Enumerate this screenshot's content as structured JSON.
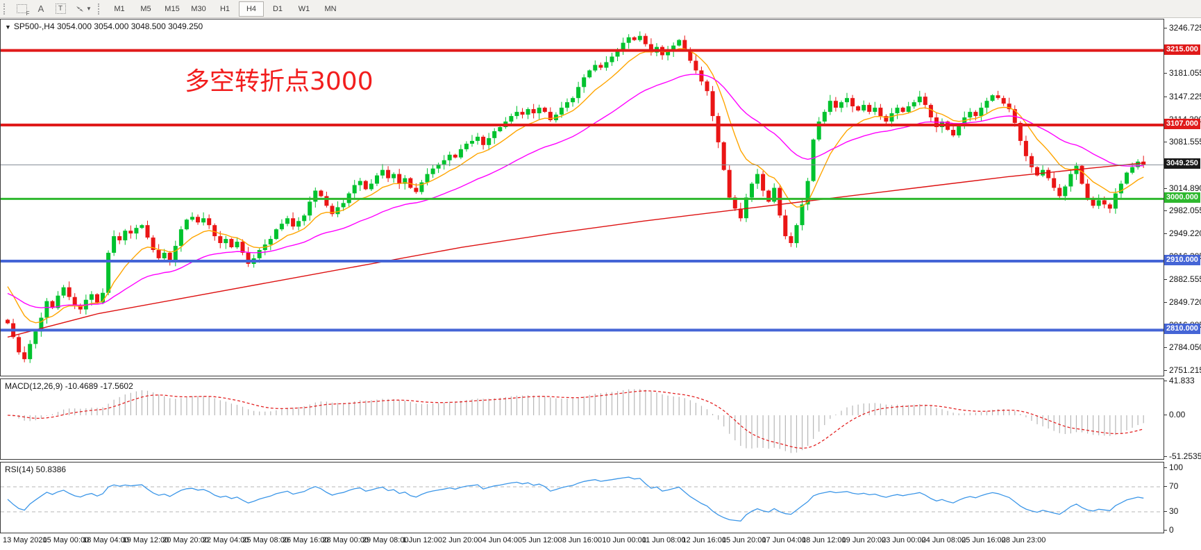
{
  "ui": {
    "toolbar": {
      "icon_letters": {
        "f": "F",
        "a": "A",
        "t": "T"
      },
      "timeframes": [
        "M1",
        "M5",
        "M15",
        "M30",
        "H1",
        "H4",
        "D1",
        "W1",
        "MN"
      ],
      "active_timeframe": "H4"
    },
    "symbol_line": "SP500-,H4  3054.000 3054.000 3048.500 3049.250"
  },
  "colors": {
    "bull": "#00c22e",
    "bear": "#ea1515",
    "ma_fast": "#ffa500",
    "ma_mid": "#ff00ff",
    "ma_slow": "#dd1010",
    "level_red": "#e01a1a",
    "level_green": "#2eb82e",
    "level_blue": "#4565d6",
    "current_line": "#808a93",
    "current_badge": "#1a1a1a",
    "macd_hist": "#b6b6b6",
    "macd_signal": "#e32222",
    "rsi_line": "#3b96e8",
    "rsi_level": "#b5b5b5",
    "annotation": "#f21d1d"
  },
  "chart_data": [
    {
      "type": "candlestick",
      "symbol": "SP500-",
      "timeframe": "H4",
      "last_bar": {
        "open": 3054.0,
        "high": 3054.0,
        "low": 3048.5,
        "close": 3049.25
      },
      "current_price": 3049.25,
      "current_price_label": "3049.250",
      "annotation": {
        "text": "多空转折点3000"
      },
      "y_ticks": [
        3246.725,
        3181.055,
        3147.225,
        3114.39,
        3081.555,
        3014.89,
        2982.055,
        2949.22,
        2916.385,
        2882.555,
        2849.72,
        2816.885,
        2784.05,
        2751.215
      ],
      "x_labels": [
        "13 May 2020",
        "15 May 00:00",
        "18 May 04:00",
        "19 May 12:00",
        "20 May 20:00",
        "22 May 04:00",
        "25 May 08:00",
        "26 May 16:00",
        "28 May 00:00",
        "29 May 08:00",
        "1 Jun 12:00",
        "2 Jun 20:00",
        "4 Jun 04:00",
        "5 Jun 12:00",
        "8 Jun 16:00",
        "10 Jun 00:00",
        "11 Jun 08:00",
        "12 Jun 16:00",
        "15 Jun 20:00",
        "17 Jun 04:00",
        "18 Jun 12:00",
        "19 Jun 20:00",
        "23 Jun 00:00",
        "24 Jun 08:00",
        "25 Jun 16:00",
        "28 Jun 23:00"
      ],
      "horizontal_levels": [
        {
          "value": 3215.0,
          "label": "3215.000",
          "color_key": "level_red",
          "width": 4
        },
        {
          "value": 3107.0,
          "label": "3107.000",
          "color_key": "level_red",
          "width": 4
        },
        {
          "value": 3000.0,
          "label": "3000.000",
          "color_key": "level_green",
          "width": 3
        },
        {
          "value": 2910.0,
          "label": "2910.000",
          "color_key": "level_blue",
          "width": 4
        },
        {
          "value": 2810.0,
          "label": "2810.000",
          "color_key": "level_blue",
          "width": 4
        }
      ],
      "moving_averages": [
        {
          "name": "fast-ma",
          "color_key": "ma_fast",
          "period": 10,
          "seed": 2885
        },
        {
          "name": "medium-ma",
          "color_key": "ma_mid",
          "period": 32,
          "seed": 2866
        },
        {
          "name": "slow-ma",
          "color_key": "ma_slow",
          "anchors": [
            [
              0,
              2800
            ],
            [
              0.08,
              2834
            ],
            [
              0.16,
              2858
            ],
            [
              0.24,
              2882
            ],
            [
              0.32,
              2906
            ],
            [
              0.4,
              2930
            ],
            [
              0.48,
              2950
            ],
            [
              0.56,
              2968
            ],
            [
              0.64,
              2984
            ],
            [
              0.72,
              3000
            ],
            [
              0.8,
              3016
            ],
            [
              0.88,
              3032
            ],
            [
              0.95,
              3044
            ],
            [
              1,
              3052
            ]
          ]
        }
      ],
      "closes": [
        2820,
        2800,
        2778,
        2768,
        2790,
        2808,
        2828,
        2852,
        2842,
        2860,
        2872,
        2858,
        2846,
        2840,
        2854,
        2862,
        2850,
        2864,
        2922,
        2946,
        2940,
        2954,
        2950,
        2958,
        2962,
        2944,
        2926,
        2914,
        2922,
        2910,
        2932,
        2956,
        2970,
        2974,
        2966,
        2972,
        2962,
        2946,
        2936,
        2942,
        2930,
        2938,
        2922,
        2906,
        2914,
        2926,
        2934,
        2942,
        2956,
        2964,
        2972,
        2960,
        2968,
        2976,
        2996,
        3012,
        3004,
        2990,
        2978,
        2988,
        2994,
        3008,
        3020,
        3026,
        3014,
        3022,
        3034,
        3042,
        3030,
        3036,
        3022,
        3030,
        3016,
        3010,
        3024,
        3036,
        3044,
        3050,
        3056,
        3064,
        3060,
        3072,
        3080,
        3084,
        3090,
        3078,
        3088,
        3098,
        3104,
        3112,
        3120,
        3126,
        3122,
        3130,
        3124,
        3132,
        3126,
        3114,
        3122,
        3132,
        3140,
        3146,
        3162,
        3176,
        3186,
        3194,
        3190,
        3198,
        3206,
        3216,
        3226,
        3234,
        3230,
        3236,
        3224,
        3212,
        3220,
        3208,
        3214,
        3222,
        3230,
        3216,
        3200,
        3186,
        3170,
        3156,
        3120,
        3082,
        3042,
        3002,
        2986,
        2972,
        3002,
        3022,
        3036,
        3012,
        2996,
        3016,
        2976,
        2946,
        2936,
        2962,
        2992,
        3026,
        3086,
        3112,
        3126,
        3142,
        3132,
        3140,
        3146,
        3134,
        3128,
        3136,
        3126,
        3132,
        3120,
        3112,
        3124,
        3132,
        3126,
        3134,
        3140,
        3148,
        3136,
        3118,
        3104,
        3112,
        3100,
        3092,
        3106,
        3118,
        3126,
        3120,
        3132,
        3142,
        3150,
        3146,
        3138,
        3130,
        3110,
        3084,
        3062,
        3046,
        3034,
        3042,
        3030,
        3016,
        3004,
        3018,
        3036,
        3048,
        3022,
        3000,
        2990,
        2998,
        2992,
        2986,
        3008,
        3022,
        3038,
        3046,
        3054,
        3049.25
      ]
    },
    {
      "type": "macd_histogram",
      "label": "MACD(12,26,9) -10.4689 -17.5602",
      "params": [
        12,
        26,
        9
      ],
      "current_values": [
        -10.4689,
        -17.5602
      ],
      "y_ticks": [
        "41.833",
        "0.00",
        "-51.2535"
      ]
    },
    {
      "type": "line",
      "label": "RSI(14) 50.8386",
      "period": 14,
      "current_value": 50.8386,
      "y_ticks": [
        "100",
        "70",
        "30",
        "0"
      ],
      "levels": [
        70,
        30
      ]
    }
  ]
}
